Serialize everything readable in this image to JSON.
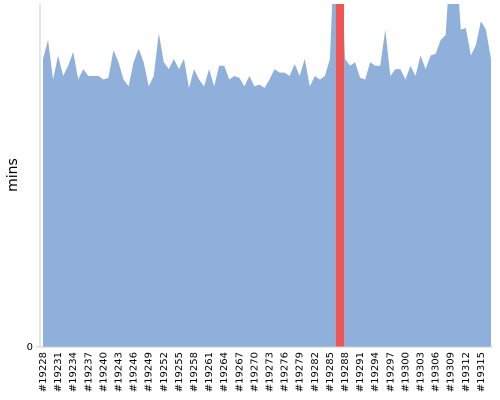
{
  "chart_data": {
    "type": "area",
    "y_label": "mins",
    "categories": [
      "#19228",
      null,
      null,
      "#19231",
      null,
      null,
      "#19234",
      null,
      null,
      "#19237",
      null,
      null,
      "#19240",
      null,
      null,
      "#19243",
      null,
      null,
      "#19246",
      null,
      null,
      "#19249",
      null,
      null,
      "#19252",
      null,
      null,
      "#19255",
      null,
      null,
      "#19258",
      null,
      null,
      "#19261",
      null,
      null,
      "#19264",
      null,
      null,
      "#19267",
      null,
      null,
      "#19270",
      null,
      null,
      "#19273",
      null,
      null,
      "#19276",
      null,
      null,
      "#19279",
      null,
      null,
      "#19282",
      null,
      null,
      "#19285",
      null,
      null,
      "#19288",
      null,
      null,
      "#19291",
      null,
      null,
      "#19294",
      null,
      null,
      "#19297",
      null,
      null,
      "#19300",
      null,
      null,
      "#19303",
      null,
      null,
      "#19306",
      null,
      null,
      "#19309",
      null,
      null,
      "#19312",
      null,
      null,
      "#19315",
      null,
      null
    ],
    "values": [
      84,
      89.5,
      78,
      85,
      79,
      82,
      86,
      78,
      81,
      79,
      79,
      79,
      78,
      78.5,
      86.5,
      83,
      78,
      76,
      83,
      87,
      83,
      76,
      79,
      91.5,
      83,
      81,
      84,
      81,
      84,
      75.5,
      81,
      78,
      76,
      81,
      76,
      82,
      82,
      78,
      79,
      78.5,
      76,
      79,
      76,
      76.5,
      75.5,
      78,
      81,
      80,
      80,
      79,
      82.5,
      79,
      84,
      76,
      79,
      78,
      79,
      84,
      120,
      120,
      84,
      82,
      83,
      78.5,
      78,
      83,
      82,
      82,
      92.5,
      79,
      81,
      81,
      78,
      82,
      79,
      85,
      81,
      85,
      85.5,
      89.5,
      91,
      115,
      115,
      92.5,
      93,
      85,
      88,
      95,
      92.5,
      84
    ],
    "color": "#8eb0da",
    "highlight": {
      "index": 59,
      "color": "#f05454"
    },
    "ylim": [
      0,
      100
    ],
    "yticks": [
      0
    ]
  }
}
